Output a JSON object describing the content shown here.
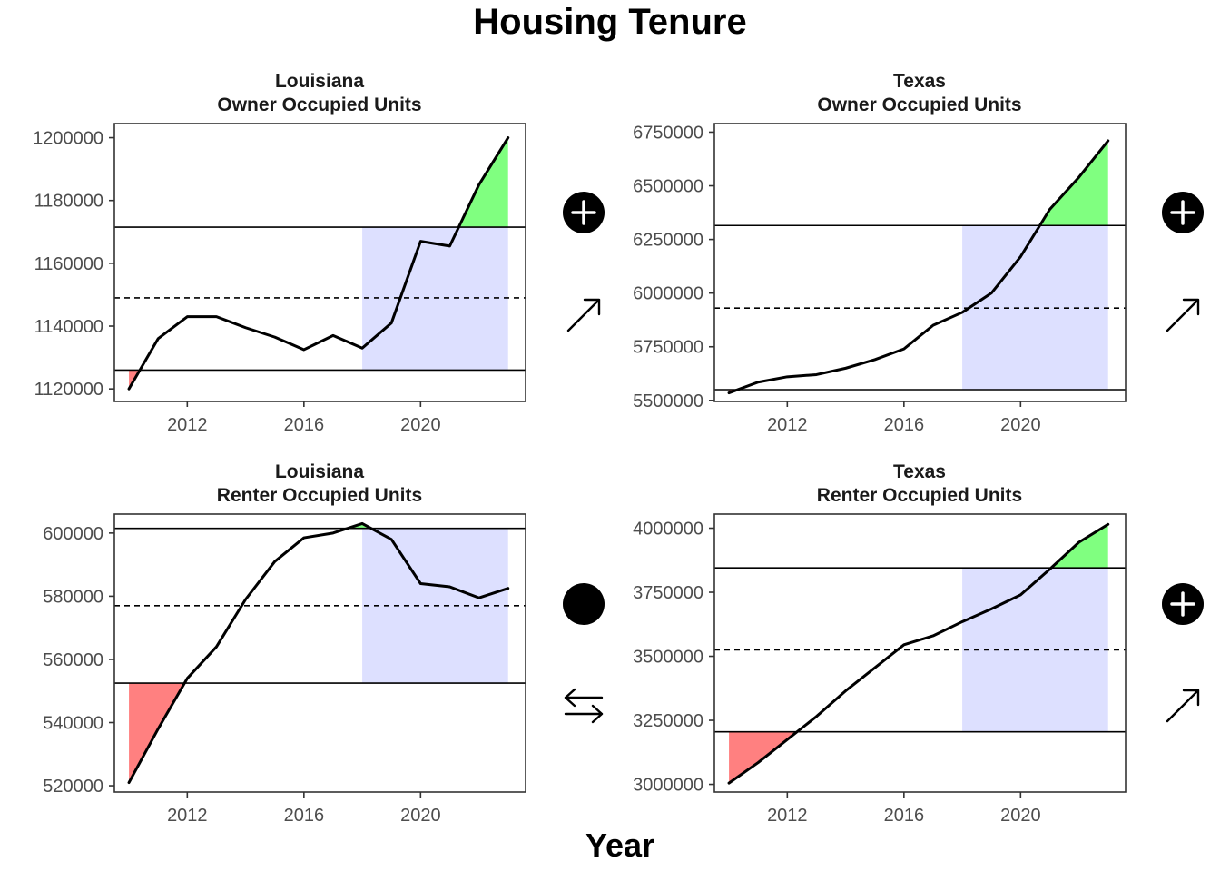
{
  "title": "Housing Tenure",
  "xlabel": "Year",
  "colors": {
    "line": "#000000",
    "below_fill": "#ff8080",
    "above_fill": "#80ff80",
    "recent_band": "#dde0ff",
    "frame": "#333333"
  },
  "chart_data": [
    {
      "type": "line",
      "title_line1": "Louisiana",
      "title_line2": "Owner Occupied Units",
      "x": [
        2010,
        2011,
        2012,
        2013,
        2014,
        2015,
        2016,
        2017,
        2018,
        2019,
        2020,
        2021,
        2022,
        2023
      ],
      "values": [
        1120000,
        1136000,
        1143000,
        1143000,
        1139500,
        1136500,
        1132500,
        1137000,
        1133000,
        1141000,
        1167000,
        1165500,
        1185000,
        1200000
      ],
      "xlim": [
        2009.5,
        2023.6
      ],
      "ylim": [
        1116000,
        1204500
      ],
      "y_ticks": [
        1120000,
        1140000,
        1160000,
        1180000,
        1200000
      ],
      "y_tick_labels": [
        "1120000",
        "1140000",
        "1160000",
        "1180000",
        "1200000"
      ],
      "x_ticks": [
        2012,
        2016,
        2020
      ],
      "x_tick_labels": [
        "2012",
        "2016",
        "2020"
      ],
      "upper_line": 1171500,
      "mean_line": 1149000,
      "lower_line": 1126000,
      "recent_band": [
        2018,
        2023
      ],
      "status_icon": "plus-circle-icon",
      "trend_icon": "arrow-up-right-icon"
    },
    {
      "type": "line",
      "title_line1": "Texas",
      "title_line2": "Owner Occupied Units",
      "x": [
        2010,
        2011,
        2012,
        2013,
        2014,
        2015,
        2016,
        2017,
        2018,
        2019,
        2020,
        2021,
        2022,
        2023
      ],
      "values": [
        5535000,
        5585000,
        5610000,
        5620000,
        5650000,
        5690000,
        5740000,
        5850000,
        5910000,
        6000000,
        6170000,
        6390000,
        6540000,
        6710000
      ],
      "xlim": [
        2009.5,
        2023.6
      ],
      "ylim": [
        5495000,
        6790000
      ],
      "y_ticks": [
        5500000,
        5750000,
        6000000,
        6250000,
        6500000,
        6750000
      ],
      "y_tick_labels": [
        "5500000",
        "5750000",
        "6000000",
        "6250000",
        "6500000",
        "6750000"
      ],
      "x_ticks": [
        2012,
        2016,
        2020
      ],
      "x_tick_labels": [
        "2012",
        "2016",
        "2020"
      ],
      "upper_line": 6315000,
      "mean_line": 5930000,
      "lower_line": 5550000,
      "recent_band": [
        2018,
        2023
      ],
      "status_icon": "plus-circle-icon",
      "trend_icon": "arrow-up-right-icon"
    },
    {
      "type": "line",
      "title_line1": "Louisiana",
      "title_line2": "Renter Occupied Units",
      "x": [
        2010,
        2011,
        2012,
        2013,
        2014,
        2015,
        2016,
        2017,
        2018,
        2019,
        2020,
        2021,
        2022,
        2023
      ],
      "values": [
        521000,
        538000,
        554000,
        564000,
        579000,
        591000,
        598500,
        600000,
        603000,
        598000,
        584000,
        583000,
        579500,
        582500
      ],
      "xlim": [
        2009.5,
        2023.6
      ],
      "ylim": [
        518000,
        606000
      ],
      "y_ticks": [
        520000,
        540000,
        560000,
        580000,
        600000
      ],
      "y_tick_labels": [
        "520000",
        "540000",
        "560000",
        "580000",
        "600000"
      ],
      "x_ticks": [
        2012,
        2016,
        2020
      ],
      "x_tick_labels": [
        "2012",
        "2016",
        "2020"
      ],
      "upper_line": 601500,
      "mean_line": 577000,
      "lower_line": 552500,
      "recent_band": [
        2018,
        2023
      ],
      "status_icon": "circle-icon",
      "trend_icon": "arrows-left-right-icon"
    },
    {
      "type": "line",
      "title_line1": "Texas",
      "title_line2": "Renter Occupied Units",
      "x": [
        2010,
        2011,
        2012,
        2013,
        2014,
        2015,
        2016,
        2017,
        2018,
        2019,
        2020,
        2021,
        2022,
        2023
      ],
      "values": [
        3005000,
        3085000,
        3175000,
        3265000,
        3365000,
        3455000,
        3545000,
        3580000,
        3635000,
        3685000,
        3740000,
        3840000,
        3945000,
        4015000
      ],
      "xlim": [
        2009.5,
        2023.6
      ],
      "ylim": [
        2970000,
        4055000
      ],
      "y_ticks": [
        3000000,
        3250000,
        3500000,
        3750000,
        4000000
      ],
      "y_tick_labels": [
        "3000000",
        "3250000",
        "3500000",
        "3750000",
        "4000000"
      ],
      "x_ticks": [
        2012,
        2016,
        2020
      ],
      "x_tick_labels": [
        "2012",
        "2016",
        "2020"
      ],
      "upper_line": 3845000,
      "mean_line": 3525000,
      "lower_line": 3205000,
      "recent_band": [
        2018,
        2023
      ],
      "status_icon": "plus-circle-icon",
      "trend_icon": "arrow-up-right-icon"
    }
  ]
}
